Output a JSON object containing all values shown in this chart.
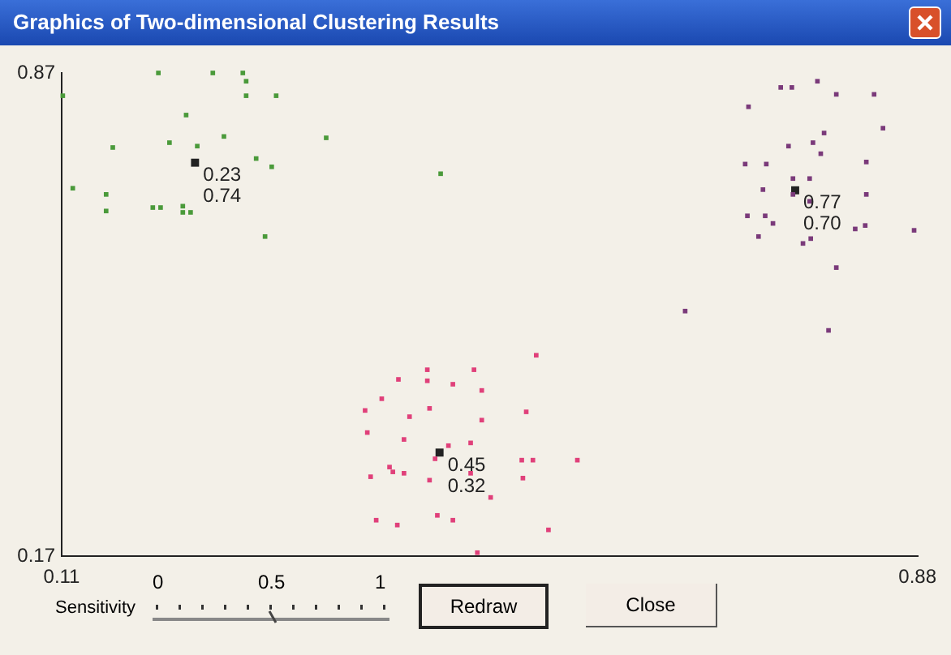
{
  "chart_data": {
    "type": "scatter",
    "title": "Graphics of Two-dimensional Clustering Results",
    "marker": "square",
    "grid": false,
    "legend": false,
    "xlim": [
      0.11,
      0.88
    ],
    "xticks": [
      0.11,
      0.88
    ],
    "ylim": [
      0.17,
      0.87
    ],
    "yticks": [
      0.17,
      0.87
    ],
    "series": [
      {
        "color": "#4a9a3a",
        "x": [
          0.111,
          0.197,
          0.246,
          0.273,
          0.276,
          0.276,
          0.303,
          0.222,
          0.156,
          0.207,
          0.256,
          0.348,
          0.285,
          0.299,
          0.451,
          0.12,
          0.15,
          0.15,
          0.192,
          0.199,
          0.219,
          0.219,
          0.226,
          0.293,
          0.232
        ],
        "values": [
          0.837,
          0.87,
          0.87,
          0.87,
          0.858,
          0.837,
          0.837,
          0.809,
          0.762,
          0.769,
          0.778,
          0.776,
          0.746,
          0.734,
          0.724,
          0.703,
          0.694,
          0.67,
          0.675,
          0.675,
          0.677,
          0.668,
          0.668,
          0.633,
          0.764
        ]
      },
      {
        "color": "#7a3a7a",
        "x": [
          0.757,
          0.767,
          0.79,
          0.807,
          0.841,
          0.728,
          0.796,
          0.849,
          0.764,
          0.786,
          0.793,
          0.725,
          0.744,
          0.834,
          0.783,
          0.768,
          0.741,
          0.768,
          0.783,
          null,
          0.834,
          0.727,
          0.743,
          0.75,
          0.737,
          0.784,
          0.777,
          0.824,
          0.833,
          0.877,
          0.807,
          0.671,
          0.8
        ],
        "values": [
          0.849,
          0.849,
          0.858,
          0.839,
          0.839,
          0.821,
          0.783,
          0.79,
          0.764,
          0.769,
          0.753,
          0.738,
          0.738,
          0.741,
          0.717,
          0.717,
          0.701,
          0.694,
          0.684,
          null,
          0.694,
          0.663,
          0.663,
          0.652,
          0.633,
          0.63,
          0.623,
          0.644,
          0.649,
          0.642,
          0.588,
          0.525,
          0.497
        ]
      },
      {
        "color": "#e0407a",
        "x": [
          0.537,
          0.439,
          0.481,
          0.413,
          0.439,
          0.462,
          0.488,
          0.398,
          0.441,
          0.383,
          0.423,
          0.528,
          0.488,
          0.385,
          0.418,
          0.478,
          0.458,
          0.446,
          0.524,
          0.534,
          0.574,
          0.405,
          0.408,
          0.418,
          0.388,
          0.441,
          0.478,
          0.525,
          0.496,
          0.393,
          0.412,
          0.448,
          0.462,
          0.548,
          0.484
        ],
        "values": [
          0.461,
          0.44,
          0.44,
          0.426,
          0.424,
          0.419,
          0.41,
          0.398,
          0.384,
          0.381,
          0.372,
          0.379,
          0.367,
          0.349,
          0.339,
          0.334,
          0.33,
          0.311,
          0.309,
          0.309,
          0.309,
          0.299,
          0.292,
          0.29,
          0.285,
          0.28,
          0.29,
          0.283,
          0.255,
          0.222,
          0.215,
          0.229,
          0.222,
          0.208,
          0.175
        ]
      },
      {
        "color": "#222222",
        "x": [
          0.23,
          0.77,
          0.45
        ],
        "values": [
          0.74,
          0.7,
          0.32
        ]
      }
    ],
    "annotations": [
      {
        "text": "0.23\n0.74",
        "x": 0.23,
        "y": 0.74
      },
      {
        "text": "0.77\n0.70",
        "x": 0.77,
        "y": 0.7
      },
      {
        "text": "0.45\n0.32",
        "x": 0.45,
        "y": 0.32
      },
      "Sensitivity",
      "0",
      "0.5",
      "1",
      "Redraw",
      "Close"
    ]
  }
}
